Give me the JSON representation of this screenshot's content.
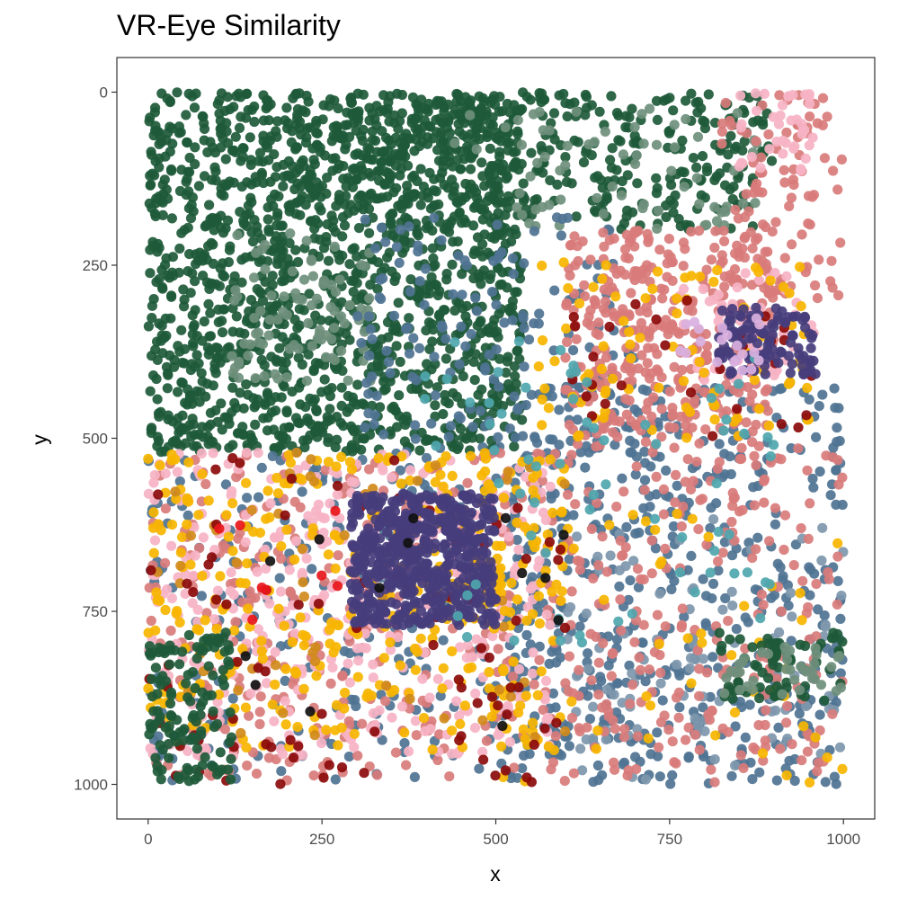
{
  "chart_data": {
    "type": "scatter",
    "title": "VR-Eye Similarity",
    "xlabel": "x",
    "ylabel": "y",
    "xlim": [
      -45,
      1045
    ],
    "ylim": [
      -50,
      1050
    ],
    "y_reversed": true,
    "x_ticks": [
      0,
      250,
      500,
      750,
      1000
    ],
    "y_ticks": [
      0,
      250,
      500,
      750,
      1000
    ],
    "x_tick_labels": [
      "0",
      "250",
      "500",
      "750",
      "1000"
    ],
    "y_tick_labels": [
      "0",
      "250",
      "500",
      "750",
      "1000"
    ],
    "grid": false,
    "legend": "none",
    "colors": {
      "dark_green": "#1e5a3a",
      "sage": "#6f8f7c",
      "steel_blue": "#4f7392",
      "light_steel": "#7e97ad",
      "dusty_rose": "#d97b7b",
      "pink": "#f6b3c4",
      "gold": "#f7b500",
      "amber": "#d08a1a",
      "dark_red": "#8b0a0a",
      "red": "#e8171b",
      "navy_purple": "#463d7c",
      "teal": "#4fa6ae",
      "lavender": "#d9b0e0",
      "black": "#111111"
    },
    "clusters": [
      {
        "color": "dark_green",
        "region": [
          0,
          0,
          540,
          520
        ],
        "n": 1500
      },
      {
        "color": "dark_green",
        "region": [
          200,
          0,
          900,
          200
        ],
        "n": 450
      },
      {
        "color": "sage",
        "region": [
          120,
          200,
          320,
          420
        ],
        "n": 90
      },
      {
        "color": "sage",
        "region": [
          440,
          20,
          880,
          200
        ],
        "n": 70
      },
      {
        "color": "steel_blue",
        "region": [
          300,
          180,
          700,
          520
        ],
        "n": 160
      },
      {
        "color": "steel_blue",
        "region": [
          520,
          420,
          1000,
          1000
        ],
        "n": 520
      },
      {
        "color": "steel_blue",
        "region": [
          0,
          520,
          600,
          1000
        ],
        "n": 260
      },
      {
        "color": "light_steel",
        "region": [
          600,
          600,
          1000,
          1000
        ],
        "n": 100
      },
      {
        "color": "dusty_rose",
        "region": [
          600,
          200,
          900,
          500
        ],
        "n": 360
      },
      {
        "color": "dusty_rose",
        "region": [
          0,
          520,
          600,
          1000
        ],
        "n": 300
      },
      {
        "color": "dusty_rose",
        "region": [
          600,
          500,
          1000,
          1000
        ],
        "n": 260
      },
      {
        "color": "dusty_rose",
        "region": [
          820,
          0,
          1000,
          300
        ],
        "n": 90
      },
      {
        "color": "pink",
        "region": [
          0,
          520,
          580,
          960
        ],
        "n": 380
      },
      {
        "color": "pink",
        "region": [
          850,
          0,
          960,
          120
        ],
        "n": 40
      },
      {
        "color": "pink",
        "region": [
          760,
          260,
          960,
          420
        ],
        "n": 60
      },
      {
        "color": "gold",
        "region": [
          0,
          520,
          600,
          950
        ],
        "n": 340
      },
      {
        "color": "gold",
        "region": [
          560,
          230,
          960,
          500
        ],
        "n": 90
      },
      {
        "color": "gold",
        "region": [
          500,
          600,
          1000,
          1000
        ],
        "n": 60
      },
      {
        "color": "amber",
        "region": [
          0,
          520,
          600,
          950
        ],
        "n": 60
      },
      {
        "color": "dark_red",
        "region": [
          0,
          520,
          600,
          1000
        ],
        "n": 90
      },
      {
        "color": "dark_red",
        "region": [
          600,
          300,
          1000,
          500
        ],
        "n": 30
      },
      {
        "color": "red",
        "region": [
          100,
          600,
          300,
          800
        ],
        "n": 8
      },
      {
        "color": "navy_purple",
        "region": [
          290,
          580,
          500,
          770
        ],
        "n": 600
      },
      {
        "color": "navy_purple",
        "region": [
          820,
          310,
          960,
          410
        ],
        "n": 110
      },
      {
        "color": "teal",
        "region": [
          380,
          360,
          900,
          800
        ],
        "n": 70
      },
      {
        "color": "lavender",
        "region": [
          760,
          320,
          880,
          420
        ],
        "n": 20
      },
      {
        "color": "black",
        "region": [
          0,
          600,
          600,
          1000
        ],
        "n": 14
      },
      {
        "color": "dark_green",
        "region": [
          0,
          780,
          120,
          1000
        ],
        "n": 130
      },
      {
        "color": "dark_green",
        "region": [
          820,
          780,
          1000,
          880
        ],
        "n": 70
      },
      {
        "color": "sage",
        "region": [
          820,
          800,
          1000,
          880
        ],
        "n": 40
      }
    ]
  }
}
